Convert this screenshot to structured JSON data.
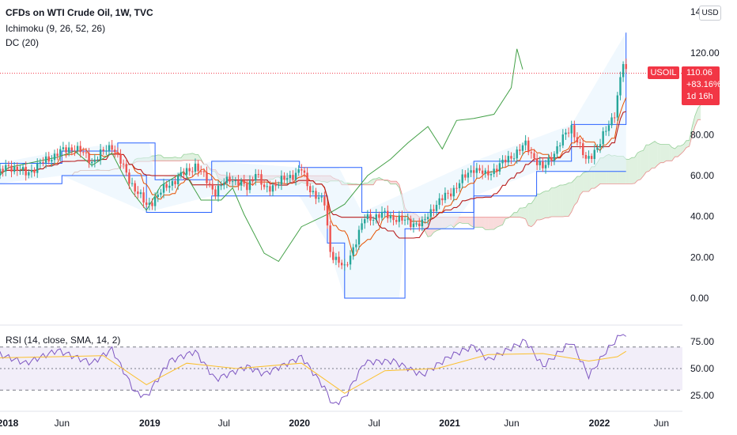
{
  "header": {
    "title": "CFDs on WTI Crude Oil, 1W, TVC",
    "indicator_1": "Ichimoku (9, 26, 52, 26)",
    "indicator_2": "DC (20)"
  },
  "currency": "USD",
  "symbol_tag": "USOIL",
  "price_box": {
    "price": "110.06",
    "change": "+83.16%",
    "countdown": "1d 16h"
  },
  "rsi_label": "RSI (14, close, SMA, 14, 2)",
  "colors": {
    "up": "#26a69a",
    "down": "#ef5350",
    "tenkan": "#2962ff",
    "kijun": "#b71c1c",
    "chikou": "#43a047",
    "span_a_cloud": "#a5d6a7",
    "span_b_cloud": "#ef9a9a",
    "donchian": "#2962ff",
    "rsi": "#7e57c2",
    "rsi_ma": "#fbc02d",
    "price_line": "#f23645"
  },
  "chart_data": [
    {
      "type": "candlestick",
      "title": "CFDs on WTI Crude Oil, 1W, TVC",
      "ylim": [
        0,
        140
      ],
      "y_ticks": [
        0,
        20,
        40,
        60,
        80,
        100,
        120
      ],
      "y_tick_labels": [
        "0.00",
        "20.00",
        "40.00",
        "60.00",
        "80.00",
        "",
        "120.00"
      ],
      "x_tick_labels": [
        "2018",
        "Jun",
        "2019",
        "Jul",
        "2020",
        "Jul",
        "2021",
        "Jun",
        "2022",
        "Jun"
      ],
      "x_tick_dates": [
        "2018-01-01",
        "2018-06-01",
        "2019-01-01",
        "2019-07-01",
        "2020-01-01",
        "2020-07-01",
        "2021-01-01",
        "2021-06-01",
        "2022-01-01",
        "2022-06-01"
      ],
      "last_price": 110.06,
      "price_path": [
        [
          "2017-12-25",
          60
        ],
        [
          "2018-01-22",
          65
        ],
        [
          "2018-03-05",
          61
        ],
        [
          "2018-05-21",
          71
        ],
        [
          "2018-07-02",
          74
        ],
        [
          "2018-08-13",
          67
        ],
        [
          "2018-10-01",
          75
        ],
        [
          "2018-11-12",
          58
        ],
        [
          "2018-12-24",
          45
        ],
        [
          "2019-02-18",
          56
        ],
        [
          "2019-04-22",
          65
        ],
        [
          "2019-06-10",
          52
        ],
        [
          "2019-07-15",
          59
        ],
        [
          "2019-08-26",
          54
        ],
        [
          "2019-09-16",
          62
        ],
        [
          "2019-10-07",
          53
        ],
        [
          "2019-11-25",
          58
        ],
        [
          "2020-01-06",
          63
        ],
        [
          "2020-01-20",
          55
        ],
        [
          "2020-03-02",
          46
        ],
        [
          "2020-03-16",
          23
        ],
        [
          "2020-04-20",
          14
        ],
        [
          "2020-05-11",
          25
        ],
        [
          "2020-06-08",
          39
        ],
        [
          "2020-07-27",
          41
        ],
        [
          "2020-09-07",
          38
        ],
        [
          "2020-10-26",
          36
        ],
        [
          "2020-11-23",
          45
        ],
        [
          "2021-01-04",
          52
        ],
        [
          "2021-03-01",
          64
        ],
        [
          "2021-03-29",
          60
        ],
        [
          "2021-05-10",
          66
        ],
        [
          "2021-07-05",
          75
        ],
        [
          "2021-08-16",
          63
        ],
        [
          "2021-10-04",
          78
        ],
        [
          "2021-10-25",
          84
        ],
        [
          "2021-11-29",
          67
        ],
        [
          "2022-01-03",
          76
        ],
        [
          "2022-02-07",
          91
        ],
        [
          "2022-02-28",
          115
        ],
        [
          "2022-03-07",
          110
        ]
      ],
      "donchian_upper": [
        [
          "2017-12-25",
          66
        ],
        [
          "2018-06-01",
          72
        ],
        [
          "2018-10-15",
          76
        ],
        [
          "2019-01-01",
          76
        ],
        [
          "2019-01-14",
          58
        ],
        [
          "2019-06-01",
          67
        ],
        [
          "2020-01-01",
          64
        ],
        [
          "2020-04-06",
          64
        ],
        [
          "2020-06-01",
          42
        ],
        [
          "2021-03-01",
          67
        ],
        [
          "2021-10-25",
          85
        ],
        [
          "2022-03-07",
          130
        ]
      ],
      "donchian_lower": [
        [
          "2017-12-25",
          56
        ],
        [
          "2018-06-01",
          60
        ],
        [
          "2018-12-24",
          42
        ],
        [
          "2019-06-01",
          50
        ],
        [
          "2020-01-01",
          50
        ],
        [
          "2020-03-09",
          27
        ],
        [
          "2020-04-20",
          0
        ],
        [
          "2020-09-01",
          0
        ],
        [
          "2020-09-14",
          34
        ],
        [
          "2021-01-04",
          34
        ],
        [
          "2021-03-01",
          50
        ],
        [
          "2021-08-01",
          62
        ],
        [
          "2022-03-07",
          62
        ]
      ],
      "chikou_span": [
        [
          "2017-12-25",
          59
        ],
        [
          "2018-01-22",
          64
        ],
        [
          "2018-05-21",
          69
        ],
        [
          "2018-07-02",
          72
        ],
        [
          "2018-08-13",
          65
        ],
        [
          "2018-10-01",
          71
        ],
        [
          "2018-11-19",
          52
        ],
        [
          "2018-12-24",
          43
        ],
        [
          "2019-01-28",
          55
        ],
        [
          "2019-03-25",
          62
        ],
        [
          "2019-05-06",
          48
        ],
        [
          "2019-06-24",
          48
        ],
        [
          "2019-07-22",
          54
        ],
        [
          "2019-08-19",
          41
        ],
        [
          "2019-10-07",
          22
        ],
        [
          "2019-11-11",
          18
        ],
        [
          "2020-01-06",
          35
        ],
        [
          "2020-03-09",
          41
        ],
        [
          "2020-04-20",
          46
        ],
        [
          "2020-06-15",
          60
        ],
        [
          "2020-08-10",
          68
        ],
        [
          "2020-09-21",
          76
        ],
        [
          "2020-11-09",
          84
        ],
        [
          "2020-12-14",
          73
        ],
        [
          "2021-01-18",
          87
        ],
        [
          "2021-03-01",
          88
        ],
        [
          "2021-04-19",
          90
        ],
        [
          "2021-05-31",
          103
        ],
        [
          "2021-06-14",
          122
        ],
        [
          "2021-06-28",
          112
        ]
      ],
      "y_axis_extra_label": "14",
      "rsi": {
        "title": "RSI (14, close, SMA, 14, 2)",
        "ylim": [
          10,
          90
        ],
        "y_ticks": [
          25,
          50,
          75
        ],
        "y_tick_labels": [
          "25.00",
          "50.00",
          "75.00"
        ],
        "bands": [
          30,
          50,
          70
        ],
        "rsi_path": [
          [
            "2017-12-25",
            64
          ],
          [
            "2018-03-05",
            55
          ],
          [
            "2018-05-21",
            67
          ],
          [
            "2018-08-13",
            55
          ],
          [
            "2018-10-01",
            68
          ],
          [
            "2018-11-26",
            28
          ],
          [
            "2018-12-24",
            24
          ],
          [
            "2019-02-18",
            57
          ],
          [
            "2019-04-22",
            66
          ],
          [
            "2019-06-10",
            40
          ],
          [
            "2019-08-26",
            52
          ],
          [
            "2019-10-07",
            45
          ],
          [
            "2020-01-06",
            61
          ],
          [
            "2020-03-02",
            32
          ],
          [
            "2020-03-23",
            16
          ],
          [
            "2020-04-20",
            23
          ],
          [
            "2020-06-08",
            56
          ],
          [
            "2020-08-17",
            57
          ],
          [
            "2020-10-26",
            44
          ],
          [
            "2021-01-04",
            62
          ],
          [
            "2021-03-01",
            71
          ],
          [
            "2021-04-05",
            58
          ],
          [
            "2021-07-05",
            76
          ],
          [
            "2021-08-16",
            52
          ],
          [
            "2021-10-25",
            75
          ],
          [
            "2021-12-06",
            43
          ],
          [
            "2022-01-17",
            66
          ],
          [
            "2022-02-28",
            84
          ],
          [
            "2022-03-07",
            77
          ]
        ],
        "rsi_ma_path": [
          [
            "2017-12-25",
            60
          ],
          [
            "2018-05-21",
            61
          ],
          [
            "2018-09-10",
            62
          ],
          [
            "2018-12-24",
            35
          ],
          [
            "2019-04-01",
            55
          ],
          [
            "2019-08-01",
            50
          ],
          [
            "2020-01-06",
            55
          ],
          [
            "2020-04-20",
            27
          ],
          [
            "2020-07-27",
            48
          ],
          [
            "2020-12-01",
            50
          ],
          [
            "2021-04-05",
            63
          ],
          [
            "2021-08-16",
            64
          ],
          [
            "2021-12-06",
            57
          ],
          [
            "2022-02-14",
            61
          ],
          [
            "2022-03-07",
            66
          ]
        ]
      }
    }
  ]
}
